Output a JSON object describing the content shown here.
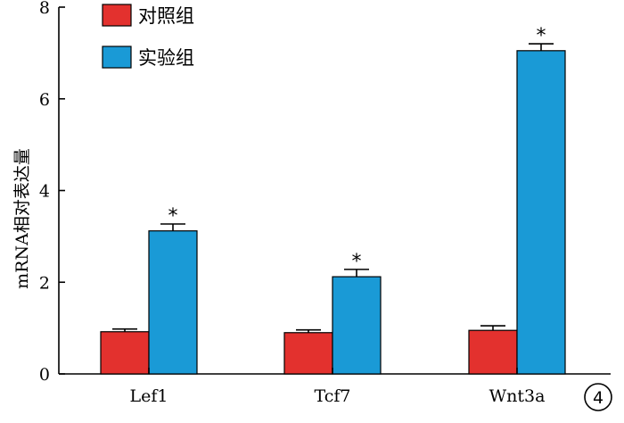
{
  "chart_data": {
    "type": "bar",
    "categories": [
      "Lef1",
      "Tcf7",
      "Wnt3a"
    ],
    "series": [
      {
        "name": "对照组",
        "color": "#e3312e",
        "values": [
          0.92,
          0.9,
          0.95
        ],
        "errors": [
          0.06,
          0.06,
          0.1
        ],
        "significance": [
          "",
          "",
          ""
        ]
      },
      {
        "name": "实验组",
        "color": "#1a9ad6",
        "values": [
          3.12,
          2.12,
          7.05
        ],
        "errors": [
          0.15,
          0.16,
          0.15
        ],
        "significance": [
          "*",
          "*",
          "*"
        ]
      }
    ],
    "ylabel": "mRNA相对表达量",
    "xlabel": "",
    "ylim": [
      0,
      8
    ],
    "yticks": [
      0,
      2,
      4,
      6,
      8
    ],
    "grid": false,
    "legend_position": "top-left"
  },
  "panel_label": "4"
}
